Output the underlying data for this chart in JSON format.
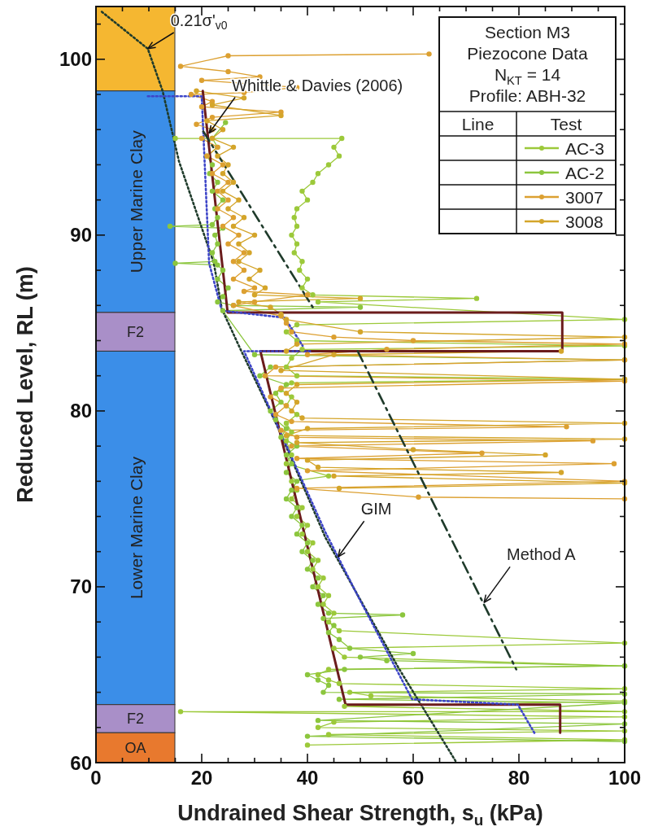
{
  "chart_data": {
    "type": "line",
    "xlabel": "Undrained Shear Strength, s$_{u}$ (kPa)",
    "ylabel": "Reduced Level, RL (m)",
    "xlim": [
      0,
      100
    ],
    "ylim": [
      60,
      103
    ],
    "xticks": [
      0,
      {
        "value": 5,
        "label": null
      },
      {
        "value": 10,
        "label": null
      },
      {
        "value": 15,
        "label": null
      },
      20,
      {
        "value": 25,
        "label": null
      },
      {
        "value": 30,
        "label": null
      },
      {
        "value": 35,
        "label": null
      },
      40,
      {
        "value": 45,
        "label": null
      },
      {
        "value": 50,
        "label": null
      },
      {
        "value": 55,
        "label": null
      },
      60,
      {
        "value": 65,
        "label": null
      },
      {
        "value": 70,
        "label": null
      },
      {
        "value": 75,
        "label": null
      },
      80,
      {
        "value": 85,
        "label": null
      },
      {
        "value": 90,
        "label": null
      },
      {
        "value": 95,
        "label": null
      },
      100
    ],
    "yticks": [
      60,
      {
        "value": 62,
        "label": null
      },
      {
        "value": 64,
        "label": null
      },
      {
        "value": 66,
        "label": null
      },
      {
        "value": 68,
        "label": null
      },
      70,
      {
        "value": 72,
        "label": null
      },
      {
        "value": 74,
        "label": null
      },
      {
        "value": 76,
        "label": null
      },
      {
        "value": 78,
        "label": null
      },
      80,
      {
        "value": 82,
        "label": null
      },
      {
        "value": 84,
        "label": null
      },
      {
        "value": 86,
        "label": null
      },
      {
        "value": 88,
        "label": null
      },
      90,
      {
        "value": 92,
        "label": null
      },
      {
        "value": 94,
        "label": null
      },
      {
        "value": 96,
        "label": null
      },
      {
        "value": 98,
        "label": null
      },
      100,
      {
        "value": 102,
        "label": null
      }
    ],
    "legend": "top right",
    "legend_title": "Section M3\nPiezocone Data\nN$_{KT}$ = 14\nProfile: ABH-32",
    "marker": "circle",
    "bands": [
      {
        "axis": "y",
        "from": 98.2,
        "to": 103,
        "label": null,
        "color": "#f5b731"
      },
      {
        "axis": "y",
        "from": 85.6,
        "to": 98.2,
        "label": "Upper Marine Clay",
        "color": "#3b8ee8"
      },
      {
        "axis": "y",
        "from": 83.4,
        "to": 85.6,
        "label": "F2",
        "color": "#a98fc8"
      },
      {
        "axis": "y",
        "from": 63.3,
        "to": 83.4,
        "label": "Lower Marine Clay",
        "color": "#3b8ee8"
      },
      {
        "axis": "y",
        "from": 61.7,
        "to": 63.3,
        "label": "F2",
        "color": "#a98fc8"
      },
      {
        "axis": "y",
        "from": 60,
        "to": 61.7,
        "label": "OA",
        "color": "#e8792e"
      }
    ],
    "series": [
      {
        "name": "AC-3",
        "color": "#9cc93a",
        "x": [
          15,
          46.5,
          45,
          46,
          44,
          42,
          41,
          39,
          40,
          38,
          37.5,
          38,
          37,
          38,
          37.5,
          39,
          38.5,
          40,
          39,
          41,
          72,
          42,
          100,
          38,
          36,
          38,
          100,
          39,
          37,
          36,
          38,
          100,
          37,
          35,
          37,
          36,
          38,
          36,
          37,
          36,
          37,
          36,
          44,
          37,
          38,
          37,
          39,
          38,
          40,
          39,
          41,
          40,
          42,
          41,
          43,
          42,
          44,
          43,
          45,
          44,
          46,
          100,
          45,
          47,
          100,
          44,
          42,
          44,
          46,
          100,
          48,
          52,
          100,
          47,
          100,
          16,
          100,
          45,
          42,
          100,
          44,
          100,
          40
        ],
        "values": [
          95.5,
          95.5,
          95,
          94.5,
          94,
          93.5,
          93,
          92.5,
          92,
          91.5,
          91,
          90.5,
          90,
          89.5,
          89,
          88.5,
          88,
          87.5,
          87,
          86.6,
          86.4,
          86.2,
          85.2,
          84.9,
          84.5,
          84,
          83.7,
          83.5,
          83,
          82.5,
          82,
          81.8,
          81.6,
          81.2,
          80.8,
          80.3,
          79.8,
          79.3,
          78.8,
          78.3,
          77.5,
          77,
          76.3,
          76,
          75.5,
          75,
          74.5,
          74,
          73.5,
          73,
          72.5,
          72,
          71.5,
          71,
          70.5,
          70,
          69.5,
          69,
          68.5,
          68,
          67.5,
          66.8,
          66.5,
          66,
          65.5,
          65.3,
          65,
          64.7,
          64.5,
          64.2,
          64,
          63.8,
          63.5,
          63.2,
          62.9,
          62.9,
          62.6,
          62.3,
          62,
          61.8,
          61.6,
          61.3,
          61
        ]
      },
      {
        "name": "AC-2",
        "color": "#8cc63e",
        "x": [
          24.5,
          22,
          23,
          21,
          22,
          21.5,
          23,
          22,
          24,
          22.5,
          23,
          22,
          14,
          24,
          22.5,
          23,
          22,
          22.5,
          15,
          23,
          24,
          23,
          25,
          24,
          23,
          26,
          50,
          24,
          30,
          100,
          33,
          31,
          36,
          34,
          35,
          33,
          34,
          36,
          35,
          38,
          36,
          37,
          36,
          38,
          37,
          36,
          38,
          37,
          39,
          38,
          40,
          39,
          41,
          40,
          42,
          41,
          43,
          42,
          44,
          58,
          43,
          45,
          44,
          46,
          48,
          60,
          50,
          55,
          100,
          47,
          40,
          42,
          44,
          43,
          100,
          46,
          100,
          42,
          100,
          40,
          100
        ],
        "values": [
          96.4,
          95.5,
          95,
          94.5,
          94,
          93.5,
          93,
          92.5,
          92,
          91.5,
          91,
          90.6,
          90.5,
          90.4,
          90,
          89.5,
          89,
          88.5,
          88.4,
          88.3,
          88,
          87.5,
          87,
          86.5,
          86.2,
          86,
          85.9,
          85.7,
          83.2,
          82.9,
          82.5,
          82,
          81.5,
          81,
          80.5,
          80,
          79.5,
          79,
          78.5,
          78,
          77.5,
          77,
          76.5,
          76,
          75.5,
          75,
          74.5,
          74,
          73.5,
          73,
          72.5,
          72,
          71.5,
          71,
          70.5,
          70,
          69.5,
          69,
          68.5,
          68.4,
          68.2,
          67.8,
          67.4,
          67,
          66.5,
          66.2,
          66,
          65.8,
          65.5,
          65.3,
          65,
          64.7,
          64.4,
          64,
          63.9,
          63.6,
          63.4,
          62.4,
          62.2,
          61.5,
          61.2
        ]
      },
      {
        "name": "3007",
        "color": "#dca031",
        "x": [
          63,
          25,
          16,
          25,
          31,
          20,
          38,
          28,
          18,
          22,
          20,
          35,
          22,
          19,
          22,
          20,
          23,
          21,
          24,
          22,
          25,
          23,
          25,
          23,
          26,
          24,
          27,
          25,
          28,
          26,
          28,
          26,
          30,
          28,
          40,
          30,
          26,
          35,
          36,
          37,
          45,
          60,
          100,
          55,
          40,
          100,
          34,
          32,
          100,
          35,
          33,
          36,
          34,
          37,
          89,
          35,
          38,
          94,
          37,
          73,
          38,
          98,
          40,
          100,
          38,
          61,
          100
        ],
        "values": [
          100.3,
          100.2,
          99.6,
          99.3,
          99,
          98.8,
          98.4,
          98.1,
          98,
          97.6,
          97.3,
          97,
          96.7,
          96.3,
          96,
          95.5,
          95,
          94.5,
          94,
          93.5,
          93,
          92.5,
          92,
          91.5,
          91,
          90.5,
          90,
          89.5,
          89,
          88.5,
          88,
          87.5,
          87,
          86.8,
          86.6,
          86.2,
          86,
          85.4,
          85,
          84.5,
          84.2,
          84,
          83.8,
          83.5,
          83.2,
          82.9,
          82.5,
          82,
          81.7,
          81.3,
          80.8,
          80.3,
          79.8,
          79.4,
          79.1,
          78.9,
          78.5,
          78.3,
          78,
          77.6,
          77.3,
          77,
          76.6,
          76,
          75.6,
          75.1,
          75
        ]
      },
      {
        "name": "3008",
        "color": "#d4a52a",
        "x": [
          19,
          28,
          22,
          35,
          21,
          24,
          22,
          26,
          23,
          25,
          24,
          26,
          24,
          27,
          25,
          28,
          26,
          30,
          27,
          29,
          27,
          31,
          29,
          32,
          30,
          50,
          27,
          33,
          35,
          36,
          50,
          100,
          38,
          36,
          88,
          45,
          35,
          100,
          38,
          36,
          38,
          37,
          39,
          100,
          40,
          36,
          100,
          38,
          60,
          85,
          40,
          42,
          88,
          45,
          100,
          46
        ],
        "values": [
          98.2,
          97.8,
          97.4,
          96.8,
          96.5,
          96,
          95.5,
          95,
          94.5,
          94,
          93.5,
          93,
          92.5,
          92,
          91.5,
          91,
          90.5,
          90,
          89.5,
          89,
          88.5,
          88,
          87.5,
          87,
          86.6,
          86.4,
          86.2,
          85.9,
          85.5,
          85.2,
          84.5,
          84.2,
          83.8,
          83.4,
          83.4,
          83.2,
          82.3,
          81.8,
          81.5,
          81,
          80.5,
          80,
          79.6,
          79.3,
          79,
          78.6,
          78.4,
          78.2,
          77.8,
          77.5,
          77.2,
          76.8,
          76.5,
          76.3,
          75.9,
          75.6
        ]
      },
      {
        "color": "#1f3b2b",
        "line_style": "dotted",
        "marker": "none",
        "x": [
          1.1,
          9.8,
          12.6,
          15.7,
          22.3,
          23.8,
          27.5,
          34.2,
          43.4,
          57.2,
          68
        ],
        "values": [
          102.7,
          100.6,
          98.2,
          94.2,
          88.4,
          85.8,
          83.4,
          79.2,
          72.8,
          65.4,
          60.1
        ]
      },
      {
        "color": "#6b1c1c",
        "line_style": "solid",
        "marker": "none",
        "x": [
          20.2,
          24.9,
          88.2,
          88.2,
          31.1,
          47.2,
          87.8,
          87.8
        ],
        "values": [
          98.2,
          85.6,
          85.6,
          83.4,
          83.4,
          63.3,
          63.3,
          61.7
        ]
      },
      {
        "color": "#3d45c8",
        "line_style": "dotted",
        "marker": "none",
        "x": [
          9.8,
          20,
          21.4,
          23.8,
          35.7,
          39.1,
          null,
          40.5,
          28,
          43.4,
          49.5,
          59.8,
          79.8,
          83.1
        ],
        "values": [
          97.9,
          97.9,
          88.4,
          85.7,
          85.3,
          83.7,
          null,
          83.4,
          83.4,
          73.1,
          69.5,
          63.6,
          63.3,
          61.6
        ]
      },
      {
        "color": "#1f3b2b",
        "line_style": "dashed",
        "marker": "none",
        "x": [
          20.3,
          41,
          null,
          49.5,
          79.5
        ],
        "values": [
          95.9,
          85.9,
          null,
          83.4,
          65.3
        ]
      }
    ],
    "annotations": [
      "Line",
      "Test",
      {
        "text": "0.21σ'$_{v0}$",
        "x": 9.8,
        "y": 100.6
      },
      {
        "text": "Whittle & Davies (2006)",
        "x": 21.4,
        "y": 95.8
      },
      {
        "text": "GIM",
        "x": 45.8,
        "y": 71.7
      },
      {
        "text": "Method A",
        "x": 73.4,
        "y": 69.1
      }
    ]
  }
}
